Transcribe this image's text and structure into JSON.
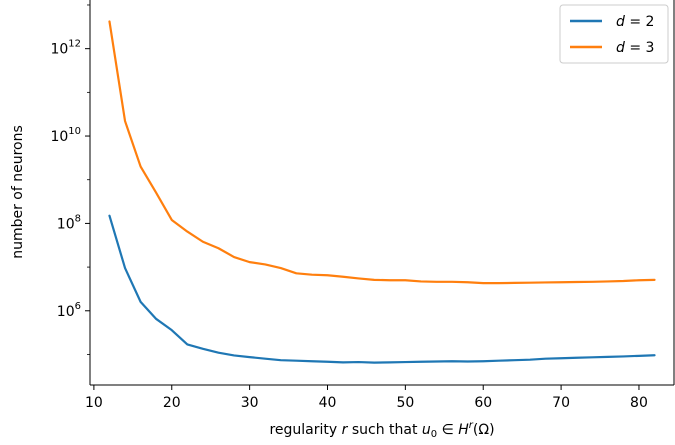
{
  "chart_data": {
    "type": "line",
    "xlabel": "regularity r such that u₀ ∈ Hʳ(Ω)",
    "ylabel": "number of neurons",
    "xscale": "linear",
    "yscale": "log",
    "xlim": [
      9.5,
      84.5
    ],
    "ylim": [
      20000.0,
      13000000000000.0
    ],
    "xticks": [
      10,
      20,
      30,
      40,
      50,
      60,
      70,
      80
    ],
    "xtick_labels": [
      "10",
      "20",
      "30",
      "40",
      "50",
      "60",
      "70",
      "80"
    ],
    "yticks": [
      1000000.0,
      100000000.0,
      10000000000.0,
      1000000000000.0
    ],
    "ytick_labels": [
      {
        "base": "10",
        "exp": "6"
      },
      {
        "base": "10",
        "exp": "8"
      },
      {
        "base": "10",
        "exp": "10"
      },
      {
        "base": "10",
        "exp": "12"
      }
    ],
    "grid": false,
    "legend_position": "top-right",
    "series": [
      {
        "name": "d = 2",
        "color": "#1f77b4",
        "x": [
          12,
          14,
          16,
          18,
          20,
          22,
          24,
          26,
          28,
          30,
          32,
          34,
          36,
          38,
          40,
          42,
          44,
          46,
          48,
          50,
          52,
          54,
          56,
          58,
          60,
          62,
          64,
          66,
          68,
          70,
          72,
          74,
          76,
          78,
          80,
          82
        ],
        "y": [
          150000000.0,
          9500000.0,
          1600000.0,
          650000.0,
          360000.0,
          170000.0,
          135000.0,
          110000.0,
          95000.0,
          87000.0,
          80000.0,
          74000.0,
          72000.0,
          70000.0,
          68000.0,
          66000.0,
          67000.0,
          65000.0,
          66000.0,
          67000.0,
          68000.0,
          69000.0,
          70000.0,
          69000.0,
          70000.0,
          72000.0,
          74000.0,
          76000.0,
          80000.0,
          82000.0,
          84000.0,
          86000.0,
          88000.0,
          90000.0,
          93000.0,
          96000.0
        ]
      },
      {
        "name": "d = 3",
        "color": "#ff7f0e",
        "x": [
          12,
          14,
          16,
          18,
          20,
          22,
          24,
          26,
          28,
          30,
          32,
          34,
          36,
          38,
          40,
          42,
          44,
          46,
          48,
          50,
          52,
          54,
          56,
          58,
          60,
          62,
          64,
          66,
          68,
          70,
          72,
          74,
          76,
          78,
          80,
          82
        ],
        "y": [
          4200000000000.0,
          22000000000.0,
          2000000000.0,
          500000000.0,
          120000000.0,
          65000000.0,
          38000000.0,
          27000000.0,
          17000000.0,
          13000000.0,
          11500000.0,
          9500000.0,
          7200000.0,
          6700000.0,
          6500000.0,
          6000000.0,
          5500000.0,
          5100000.0,
          5000000.0,
          5000000.0,
          4700000.0,
          4600000.0,
          4600000.0,
          4500000.0,
          4300000.0,
          4300000.0,
          4350000.0,
          4400000.0,
          4450000.0,
          4500000.0,
          4550000.0,
          4600000.0,
          4700000.0,
          4800000.0,
          5000000.0,
          5100000.0
        ]
      }
    ]
  }
}
